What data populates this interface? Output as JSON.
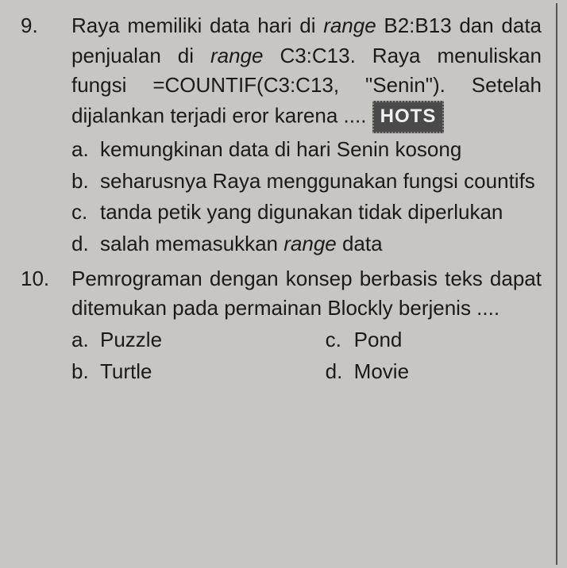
{
  "colors": {
    "background": "#c8c6c3",
    "text": "#1a1a1a",
    "badge_bg": "#4a4a4a",
    "badge_text": "#f0f0f0",
    "border": "#555"
  },
  "typography": {
    "body_fontsize": 26,
    "line_height": 1.45,
    "font_family": "Arial"
  },
  "questions": [
    {
      "number": "9.",
      "text_parts": {
        "p1": "Raya memiliki data hari di ",
        "i1": "range",
        "p2": " B2:B13 dan data penjualan di ",
        "i2": "range",
        "p3": " C3:C13. Raya menuliskan fungsi =COUNTIF(C3:C13, \"Senin\"). Setelah dijalankan terjadi eror karena .... "
      },
      "badge": "HOTS",
      "options": {
        "a": {
          "letter": "a.",
          "text": "kemungkinan data di hari Senin kosong"
        },
        "b": {
          "letter": "b.",
          "text": "seharusnya Raya menggunakan fungsi countifs"
        },
        "c": {
          "letter": "c.",
          "text": "tanda petik yang digunakan tidak diperlukan"
        },
        "d": {
          "letter": "d.",
          "text_pre": "salah memasukkan ",
          "italic": "range",
          "text_post": " data"
        }
      }
    },
    {
      "number": "10.",
      "text": "Pemrograman dengan konsep berbasis teks dapat ditemukan pada permainan Blockly berjenis ....",
      "options": {
        "a": {
          "letter": "a.",
          "text": "Puzzle"
        },
        "b": {
          "letter": "b.",
          "text": "Turtle"
        },
        "c": {
          "letter": "c.",
          "text": "Pond"
        },
        "d": {
          "letter": "d.",
          "text": "Movie"
        }
      }
    }
  ]
}
